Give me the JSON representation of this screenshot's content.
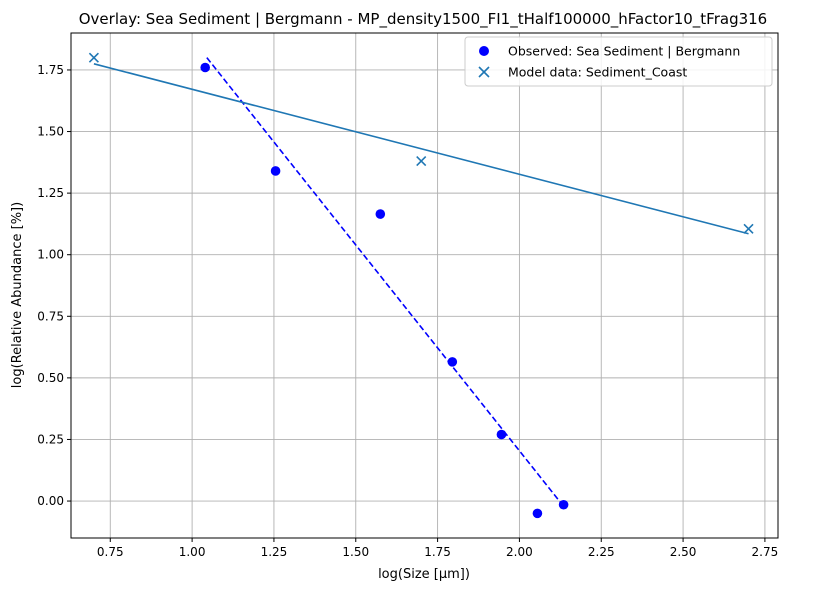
{
  "chart_data": {
    "type": "scatter",
    "title": "Overlay: Sea Sediment | Bergmann - MP_density1500_FI1_tHalf100000_hFactor10_tFrag316",
    "xlabel": "log(Size [µm])",
    "ylabel": "log(Relative Abundance [%])",
    "xlim": [
      0.63,
      2.79
    ],
    "ylim": [
      -0.15,
      1.9
    ],
    "xticks": [
      0.75,
      1.0,
      1.25,
      1.5,
      1.75,
      2.0,
      2.25,
      2.5,
      2.75
    ],
    "xtick_labels": [
      "0.75",
      "1.00",
      "1.25",
      "1.50",
      "1.75",
      "2.00",
      "2.25",
      "2.50",
      "2.75"
    ],
    "yticks": [
      0.0,
      0.25,
      0.5,
      0.75,
      1.0,
      1.25,
      1.5,
      1.75
    ],
    "ytick_labels": [
      "0.00",
      "0.25",
      "0.50",
      "0.75",
      "1.00",
      "1.25",
      "1.50",
      "1.75"
    ],
    "grid": true,
    "legend_position": "top-right",
    "series": [
      {
        "name": "Observed: Sea Sediment | Bergmann",
        "marker": "circle",
        "color": "#0000ff",
        "x": [
          1.04,
          1.255,
          1.575,
          1.795,
          1.945,
          2.055,
          2.135
        ],
        "y": [
          1.76,
          1.34,
          1.165,
          0.565,
          0.27,
          -0.05,
          -0.015
        ]
      },
      {
        "name": "Model data: Sediment_Coast",
        "marker": "x",
        "color": "#1f77b4",
        "x": [
          0.7,
          1.7,
          2.7
        ],
        "y": [
          1.8,
          1.38,
          1.105
        ]
      }
    ],
    "fit_lines": [
      {
        "of": "Observed: Sea Sediment | Bergmann",
        "style": "dashed",
        "color": "#0000ff",
        "x": [
          1.045,
          2.14
        ],
        "y": [
          1.8,
          -0.03
        ]
      },
      {
        "of": "Model data: Sediment_Coast",
        "style": "solid",
        "color": "#1f77b4",
        "x": [
          0.7,
          2.7
        ],
        "y": [
          1.775,
          1.085
        ]
      }
    ]
  }
}
